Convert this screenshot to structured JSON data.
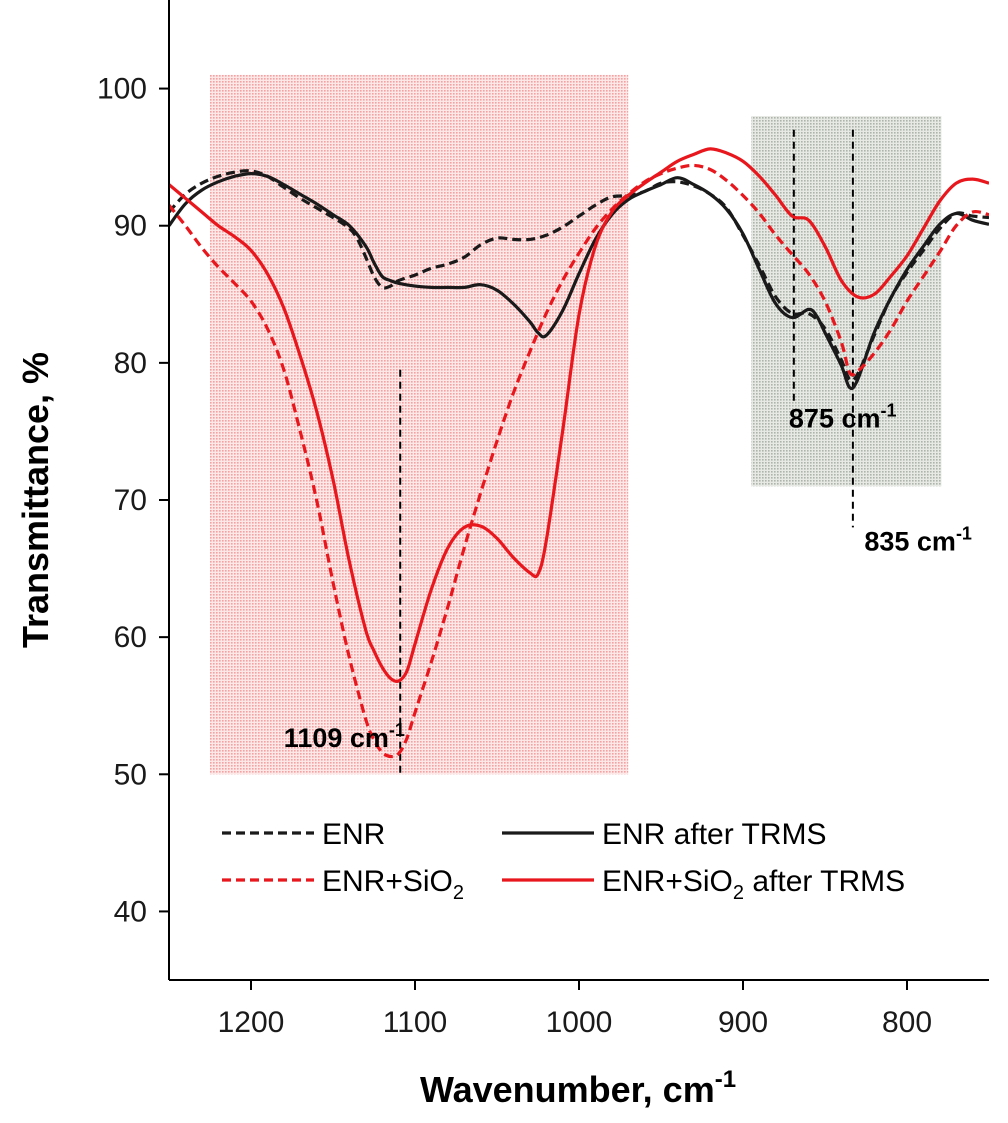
{
  "chart_data": {
    "type": "line",
    "title": "",
    "xlabel": "Wavenumber, cm",
    "xlabel_sup": "-1",
    "ylabel": "Transmittance, %",
    "xlim": [
      1250,
      750
    ],
    "ylim": [
      35,
      105
    ],
    "x_reversed": true,
    "xticks": [
      1200,
      1100,
      1000,
      900,
      800
    ],
    "yticks": [
      40,
      50,
      60,
      70,
      80,
      90,
      100
    ],
    "grid": false,
    "legend_position": "bottom",
    "shaded_regions": [
      {
        "name": "si-o-si-band",
        "x": [
          1225,
          970
        ],
        "y": [
          50,
          101
        ],
        "color": "#f7b8b8"
      },
      {
        "name": "epoxy-band",
        "x": [
          895,
          779
        ],
        "y": [
          71,
          98
        ],
        "color": "#c7cdc4"
      }
    ],
    "reference_lines": [
      {
        "name": "ref-1109",
        "x": 1109,
        "y": [
          50,
          79.5
        ]
      },
      {
        "name": "ref-875",
        "x": 869,
        "y": [
          77,
          97
        ]
      },
      {
        "name": "ref-835",
        "x": 833,
        "y": [
          68,
          97
        ]
      }
    ],
    "annotations": [
      {
        "name": "anno-1109",
        "base": "1109 cm",
        "sup": "-1",
        "x": 1180,
        "y": 52
      },
      {
        "name": "anno-875",
        "base": "875 cm",
        "sup": "-1",
        "x": 872,
        "y": 75.3
      },
      {
        "name": "anno-835",
        "base": "835 cm",
        "sup": "-1",
        "x": 826,
        "y": 66.3
      }
    ],
    "series": [
      {
        "name": "ENR",
        "color": "#1a1a1a",
        "dash": "dashed",
        "x": [
          1250,
          1240,
          1230,
          1220,
          1210,
          1200,
          1190,
          1180,
          1170,
          1160,
          1150,
          1140,
          1135,
          1130,
          1125,
          1120,
          1115,
          1110,
          1100,
          1090,
          1080,
          1070,
          1060,
          1050,
          1040,
          1030,
          1020,
          1010,
          1000,
          990,
          980,
          970,
          960,
          950,
          940,
          930,
          920,
          910,
          900,
          890,
          880,
          870,
          860,
          850,
          840,
          835,
          830,
          820,
          810,
          800,
          790,
          780,
          770,
          760,
          750
        ],
        "y": [
          91,
          92.3,
          93.1,
          93.6,
          93.9,
          94,
          93.6,
          92.8,
          92,
          91.3,
          90.6,
          89.8,
          89,
          87.7,
          86.3,
          85.5,
          85.6,
          86.0,
          86.4,
          86.9,
          87.2,
          87.7,
          88.6,
          89.1,
          89.0,
          89.0,
          89.3,
          89.9,
          90.7,
          91.5,
          92.1,
          92.2,
          92.5,
          93.1,
          93.2,
          92.9,
          92.3,
          91.3,
          89.3,
          87.1,
          84.8,
          83.6,
          83.6,
          82.5,
          80.2,
          78.8,
          79.2,
          82.0,
          84.7,
          86.6,
          88.2,
          89.8,
          90.9,
          90.7,
          90.6
        ]
      },
      {
        "name": "ENR after TRMS",
        "color": "#1a1a1a",
        "dash": "solid",
        "x": [
          1250,
          1240,
          1230,
          1220,
          1210,
          1200,
          1190,
          1180,
          1170,
          1160,
          1150,
          1140,
          1130,
          1125,
          1120,
          1115,
          1110,
          1100,
          1090,
          1080,
          1070,
          1060,
          1050,
          1040,
          1030,
          1025,
          1020,
          1010,
          1000,
          990,
          980,
          970,
          960,
          950,
          940,
          930,
          920,
          910,
          900,
          890,
          880,
          870,
          860,
          855,
          850,
          840,
          835,
          830,
          820,
          810,
          800,
          790,
          780,
          770,
          760,
          750
        ],
        "y": [
          90,
          91.6,
          92.6,
          93.2,
          93.6,
          93.8,
          93.6,
          93.0,
          92.3,
          91.6,
          90.8,
          90.0,
          88.5,
          87.3,
          86.3,
          86.0,
          85.8,
          85.6,
          85.5,
          85.5,
          85.5,
          85.7,
          85.3,
          84.3,
          83.0,
          82.2,
          82.0,
          83.8,
          86.5,
          89.0,
          90.8,
          91.9,
          92.5,
          93.0,
          93.5,
          93.0,
          92.3,
          91.2,
          89.4,
          86.8,
          84.3,
          83.3,
          83.9,
          83.4,
          82.2,
          79.8,
          78.2,
          78.8,
          82.2,
          84.7,
          86.8,
          88.5,
          90.1,
          90.9,
          90.4,
          90.1
        ]
      },
      {
        "name": "ENR+SiO",
        "sub": "2",
        "color": "#e8171d",
        "dash": "dashed",
        "x": [
          1250,
          1240,
          1230,
          1220,
          1210,
          1200,
          1190,
          1180,
          1170,
          1160,
          1150,
          1140,
          1130,
          1125,
          1120,
          1115,
          1110,
          1105,
          1100,
          1090,
          1080,
          1070,
          1060,
          1050,
          1040,
          1030,
          1020,
          1010,
          1000,
          990,
          980,
          970,
          960,
          950,
          940,
          930,
          920,
          910,
          900,
          890,
          880,
          870,
          860,
          850,
          840,
          835,
          830,
          820,
          810,
          800,
          790,
          780,
          770,
          760,
          750
        ],
        "y": [
          91.5,
          90.0,
          88.4,
          87.0,
          85.8,
          84.5,
          82.5,
          79.5,
          75.0,
          70.0,
          64.0,
          58.5,
          54.0,
          52.5,
          51.6,
          51.3,
          51.5,
          52.6,
          54.5,
          58.2,
          62.2,
          66.5,
          70.5,
          74.3,
          77.8,
          80.8,
          83.6,
          86.0,
          88.0,
          89.8,
          91.2,
          92.3,
          93.2,
          93.8,
          94.2,
          94.4,
          94.1,
          93.3,
          92.2,
          90.9,
          89.3,
          87.9,
          86.5,
          84.5,
          81.5,
          79.3,
          79.4,
          80.7,
          82.4,
          84.5,
          86.3,
          88.1,
          90.0,
          91.0,
          90.8
        ]
      },
      {
        "name": "ENR+SiO",
        "sub": "2",
        "suffix": " after TRMS",
        "color": "#e8171d",
        "dash": "solid",
        "x": [
          1250,
          1240,
          1230,
          1220,
          1210,
          1200,
          1190,
          1180,
          1170,
          1160,
          1150,
          1140,
          1130,
          1125,
          1120,
          1115,
          1110,
          1105,
          1100,
          1090,
          1080,
          1070,
          1060,
          1050,
          1040,
          1030,
          1025,
          1020,
          1010,
          1000,
          990,
          980,
          970,
          960,
          950,
          940,
          930,
          920,
          910,
          900,
          890,
          880,
          870,
          860,
          850,
          840,
          830,
          820,
          810,
          800,
          790,
          780,
          770,
          760,
          750
        ],
        "y": [
          93.0,
          92.0,
          91.0,
          90.0,
          89.2,
          88.2,
          86.5,
          84.0,
          80.5,
          76.5,
          71.5,
          65.5,
          60.5,
          59.0,
          57.8,
          57.0,
          56.8,
          57.5,
          59.5,
          63.5,
          66.5,
          68.0,
          68.1,
          67.2,
          65.8,
          64.7,
          64.6,
          67.0,
          75.0,
          83.5,
          88.5,
          91.0,
          92.2,
          93.1,
          93.9,
          94.7,
          95.2,
          95.6,
          95.3,
          94.7,
          93.6,
          92.2,
          90.7,
          90.4,
          88.5,
          86.0,
          84.8,
          85.0,
          86.3,
          87.8,
          89.8,
          91.8,
          93.1,
          93.4,
          93.1
        ]
      }
    ]
  }
}
